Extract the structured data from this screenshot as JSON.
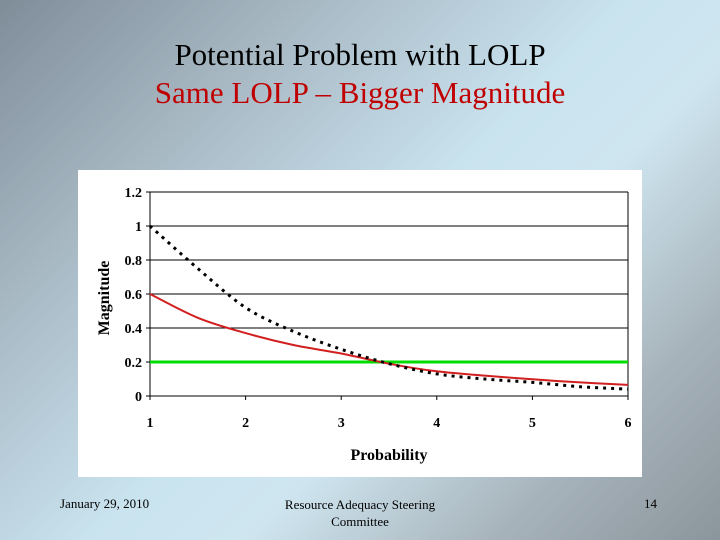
{
  "slide": {
    "title_line1": "Potential Problem with LOLP",
    "title_line2": "Same LOLP – Bigger Magnitude",
    "footer_date": "January 29, 2010",
    "footer_committee": "Resource Adequacy Steering Committee",
    "footer_page": "14"
  },
  "colors": {
    "title_line2": "#c00000",
    "red_curve": "#d21f1f",
    "green_line": "#00dd00",
    "dotted_curve": "#000000"
  },
  "chart_data": {
    "type": "line",
    "title": "",
    "xlabel": "Probability",
    "ylabel": "Magnitude",
    "xlim": [
      1,
      6
    ],
    "ylim": [
      0,
      1.2
    ],
    "x_ticks": [
      "1",
      "2",
      "3",
      "4",
      "5",
      "6"
    ],
    "y_ticks": [
      "0",
      "0.2",
      "0.4",
      "0.6",
      "0.8",
      "1",
      "1.2"
    ],
    "grid": "horizontal",
    "legend": "none",
    "series": [
      {
        "name": "solid red curve",
        "style": "solid",
        "color": "#d21f1f",
        "x": [
          1,
          1.5,
          2,
          2.5,
          3,
          3.5,
          4,
          4.5,
          5,
          5.5,
          6
        ],
        "y": [
          0.6,
          0.46,
          0.37,
          0.3,
          0.25,
          0.19,
          0.145,
          0.12,
          0.098,
          0.08,
          0.065
        ]
      },
      {
        "name": "dotted black curve",
        "style": "dotted",
        "color": "#000000",
        "x": [
          1,
          1.5,
          2,
          2.5,
          3,
          3.5,
          4,
          4.5,
          5,
          5.5,
          6
        ],
        "y": [
          1.0,
          0.75,
          0.52,
          0.38,
          0.275,
          0.19,
          0.13,
          0.1,
          0.08,
          0.055,
          0.04
        ]
      },
      {
        "name": "green constant line",
        "style": "solid",
        "color": "#00dd00",
        "x": [
          1,
          6
        ],
        "y": [
          0.2,
          0.2
        ]
      }
    ]
  }
}
